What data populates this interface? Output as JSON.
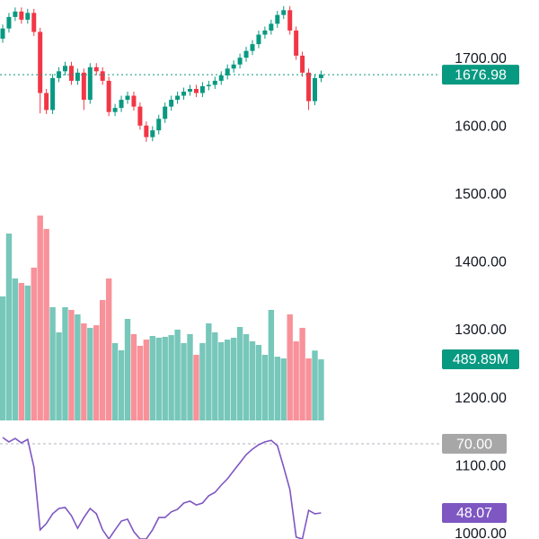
{
  "chart_data": [
    {
      "type": "candlestick",
      "open": [
        1730,
        1745,
        1762,
        1770,
        1758,
        1768,
        1740,
        1650,
        1625,
        1672,
        1682,
        1690,
        1668,
        1680,
        1640,
        1688,
        1682,
        1668,
        1622,
        1628,
        1640,
        1646,
        1630,
        1602,
        1585,
        1595,
        1612,
        1630,
        1640,
        1646,
        1652,
        1656,
        1650,
        1660,
        1662,
        1668,
        1676,
        1686,
        1692,
        1702,
        1712,
        1722,
        1736,
        1742,
        1752,
        1765,
        1772,
        1742,
        1705,
        1680,
        1638,
        1672
      ],
      "high": [
        1751,
        1768,
        1776,
        1776,
        1774,
        1774,
        1746,
        1656,
        1678,
        1688,
        1696,
        1696,
        1686,
        1686,
        1694,
        1694,
        1688,
        1674,
        1634,
        1646,
        1652,
        1652,
        1636,
        1608,
        1601,
        1618,
        1636,
        1646,
        1652,
        1658,
        1662,
        1662,
        1666,
        1668,
        1674,
        1682,
        1692,
        1698,
        1708,
        1718,
        1728,
        1742,
        1748,
        1758,
        1771,
        1778,
        1778,
        1748,
        1711,
        1686,
        1678,
        1683
      ],
      "low": [
        1724,
        1739,
        1756,
        1752,
        1752,
        1734,
        1620,
        1619,
        1619,
        1666,
        1676,
        1662,
        1662,
        1625,
        1634,
        1676,
        1662,
        1616,
        1616,
        1622,
        1634,
        1624,
        1596,
        1578,
        1579,
        1589,
        1606,
        1624,
        1634,
        1640,
        1646,
        1644,
        1644,
        1654,
        1656,
        1662,
        1670,
        1680,
        1686,
        1696,
        1706,
        1716,
        1730,
        1736,
        1746,
        1759,
        1736,
        1699,
        1674,
        1625,
        1632,
        1666
      ],
      "close": [
        1745,
        1762,
        1770,
        1758,
        1768,
        1740,
        1650,
        1625,
        1672,
        1682,
        1690,
        1668,
        1680,
        1640,
        1688,
        1682,
        1668,
        1622,
        1628,
        1640,
        1646,
        1630,
        1602,
        1585,
        1595,
        1612,
        1630,
        1640,
        1646,
        1652,
        1656,
        1650,
        1660,
        1662,
        1668,
        1676,
        1686,
        1692,
        1702,
        1712,
        1722,
        1736,
        1742,
        1752,
        1765,
        1772,
        1742,
        1705,
        1680,
        1638,
        1672,
        1676.98
      ],
      "up_color": "#089981",
      "down_color": "#f23645",
      "ylim": [
        993,
        1787
      ],
      "yticks": [
        {
          "value": 1000,
          "label": "1000.00"
        },
        {
          "value": 1100,
          "label": "1100.00"
        },
        {
          "value": 1200,
          "label": "1200.00"
        },
        {
          "value": 1300,
          "label": "1300.00"
        },
        {
          "value": 1400,
          "label": "1400.00"
        },
        {
          "value": 1500,
          "label": "1500.00"
        },
        {
          "value": 1600,
          "label": "1600.00"
        },
        {
          "value": 1700,
          "label": "1700.00"
        }
      ]
    },
    {
      "type": "bar",
      "values": [
        994,
        1498,
        1138,
        1102,
        1081,
        1225,
        1643,
        1535,
        908,
        706,
        908,
        886,
        850,
        778,
        742,
        763,
        965,
        1138,
        620,
        562,
        814,
        692,
        598,
        648,
        677,
        663,
        670,
        684,
        728,
        620,
        692,
        526,
        620,
        778,
        706,
        627,
        648,
        663,
        749,
        692,
        634,
        605,
        526,
        886,
        511,
        497,
        850,
        634,
        742,
        497,
        560,
        489.89
      ],
      "value_labels": [
        null,
        null,
        null,
        null,
        null,
        null,
        null,
        null,
        null,
        null,
        null,
        null,
        null,
        null,
        null,
        null,
        null,
        null,
        null,
        null,
        null,
        null,
        null,
        null,
        null,
        null,
        null,
        null,
        null,
        null,
        null,
        null,
        null,
        null,
        null,
        null,
        null,
        null,
        null,
        null,
        null,
        null,
        null,
        null,
        null,
        null,
        null,
        null,
        null,
        null,
        null,
        "489.89M"
      ],
      "ylim": [
        0,
        1714
      ]
    },
    {
      "type": "line",
      "values": [
        72.0,
        70.6,
        71.7,
        70.3,
        71.4,
        62.6,
        42.7,
        44.7,
        47.8,
        49.5,
        49.8,
        47.2,
        43.2,
        46.6,
        49.5,
        47.8,
        42.7,
        39.8,
        42.7,
        45.5,
        46.1,
        42.1,
        39.8,
        39.8,
        42.7,
        46.6,
        46.6,
        48.4,
        49.2,
        51.2,
        51.8,
        50.6,
        51.2,
        53.5,
        54.6,
        56.9,
        58.9,
        61.5,
        64.0,
        66.6,
        68.3,
        69.7,
        70.6,
        71.1,
        69.4,
        62.6,
        55.5,
        40.4,
        39.8,
        48.9,
        47.8,
        48.07
      ],
      "color": "#7e57c2",
      "ylim": [
        39.8,
        74
      ],
      "yticks": [
        {
          "value": 70,
          "label": "70.00"
        }
      ]
    }
  ]
}
